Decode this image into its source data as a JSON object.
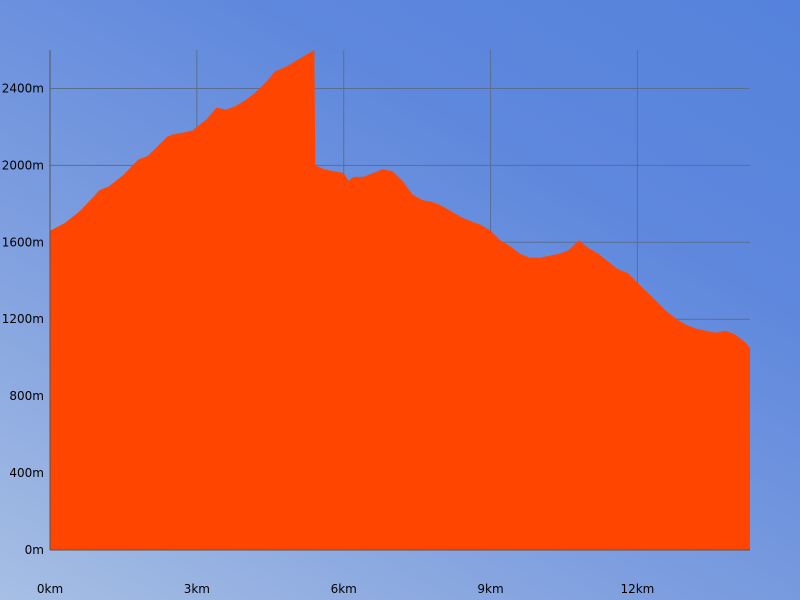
{
  "chart_data": {
    "type": "area",
    "title": "",
    "xlabel": "",
    "ylabel": "",
    "xlim": [
      0,
      14.3
    ],
    "ylim": [
      0,
      2600
    ],
    "grid": true,
    "colors": {
      "fill": "#ff4500",
      "grid": "#5a6f90"
    },
    "x_ticks": [
      {
        "value": 0,
        "label": "0km"
      },
      {
        "value": 3,
        "label": "3km"
      },
      {
        "value": 6,
        "label": "6km"
      },
      {
        "value": 9,
        "label": "9km"
      },
      {
        "value": 12,
        "label": "12km"
      }
    ],
    "y_ticks": [
      {
        "value": 0,
        "label": "0m"
      },
      {
        "value": 400,
        "label": "400m"
      },
      {
        "value": 800,
        "label": "800m"
      },
      {
        "value": 1200,
        "label": "1200m"
      },
      {
        "value": 1600,
        "label": "1600m"
      },
      {
        "value": 2000,
        "label": "2000m"
      },
      {
        "value": 2400,
        "label": "2400m"
      }
    ],
    "series": [
      {
        "x": [
          0,
          0.3,
          0.6,
          0.9,
          1.0,
          1.2,
          1.5,
          1.8,
          2.0,
          2.2,
          2.4,
          2.5,
          2.7,
          2.9,
          3.0,
          3.2,
          3.4,
          3.6,
          3.8,
          4.0,
          4.2,
          4.4,
          4.6,
          4.8,
          5.0,
          5.2,
          5.4,
          5.42,
          5.6,
          5.8,
          6.0,
          6.1,
          6.2,
          6.4,
          6.6,
          6.8,
          7.0,
          7.2,
          7.4,
          7.6,
          7.8,
          8.0,
          8.2,
          8.4,
          8.6,
          8.8,
          9.0,
          9.2,
          9.4,
          9.6,
          9.8,
          10.0,
          10.2,
          10.4,
          10.6,
          10.8,
          11.0,
          11.2,
          11.4,
          11.6,
          11.8,
          12.0,
          12.2,
          12.4,
          12.6,
          12.8,
          13.0,
          13.2,
          13.4,
          13.6,
          13.8,
          14.0,
          14.2,
          14.3
        ],
        "values": [
          1660,
          1700,
          1760,
          1840,
          1870,
          1890,
          1950,
          2030,
          2050,
          2100,
          2150,
          2160,
          2170,
          2180,
          2200,
          2240,
          2300,
          2290,
          2310,
          2340,
          2380,
          2430,
          2490,
          2510,
          2540,
          2570,
          2600,
          2000,
          1980,
          1970,
          1960,
          1920,
          1940,
          1940,
          1960,
          1980,
          1970,
          1920,
          1850,
          1820,
          1810,
          1790,
          1760,
          1730,
          1710,
          1690,
          1660,
          1610,
          1580,
          1540,
          1520,
          1520,
          1530,
          1540,
          1560,
          1610,
          1570,
          1540,
          1500,
          1460,
          1440,
          1390,
          1340,
          1290,
          1240,
          1200,
          1170,
          1150,
          1140,
          1130,
          1140,
          1120,
          1080,
          1050
        ]
      }
    ]
  }
}
